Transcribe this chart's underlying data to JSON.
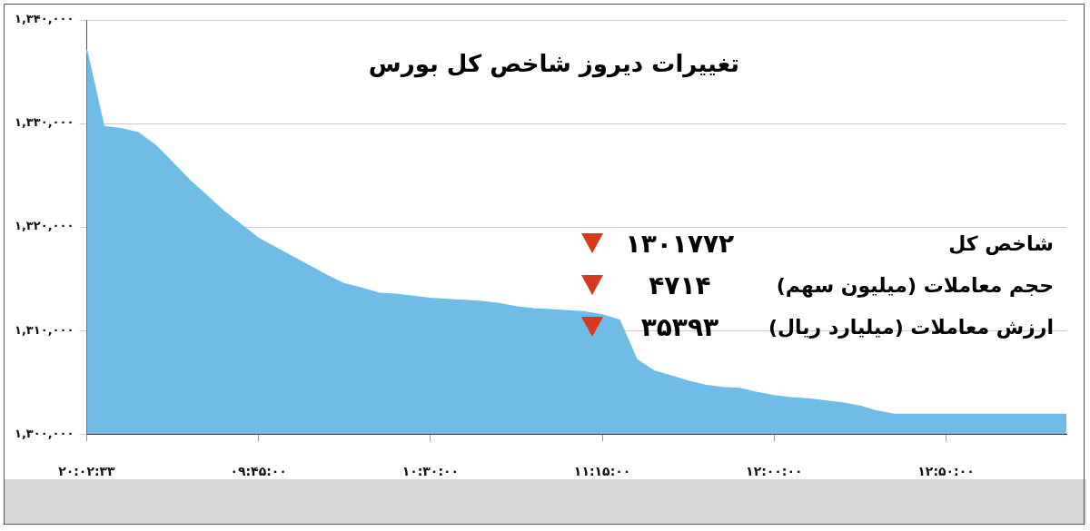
{
  "chart_data": {
    "type": "area",
    "title": "تغییرات دیروز شاخص کل بورس",
    "categories": [
      "۲۰:۰۲:۳۳",
      null,
      null,
      null,
      null,
      null,
      null,
      null,
      null,
      null,
      "۰۹:۴۵:۰۰",
      null,
      null,
      null,
      null,
      null,
      null,
      null,
      null,
      null,
      "۱۰:۳۰:۰۰",
      null,
      null,
      null,
      null,
      null,
      null,
      null,
      null,
      null,
      "۱۱:۱۵:۰۰",
      null,
      null,
      null,
      null,
      null,
      null,
      null,
      null,
      null,
      "۱۲:۰۰:۰۰",
      null,
      null,
      null,
      null,
      null,
      null,
      null,
      null,
      null,
      "۱۲:۵۰:۰۰",
      null,
      null,
      null,
      null,
      null,
      null,
      null
    ],
    "series": [
      {
        "color": "#6fbde6",
        "values": [
          1337100,
          1329700,
          1329500,
          1329100,
          1327900,
          1326200,
          1324500,
          1323000,
          1321500,
          1320200,
          1318900,
          1318000,
          1317100,
          1316200,
          1315300,
          1314500,
          1314100,
          1313600,
          1313500,
          1313300,
          1313100,
          1313000,
          1312900,
          1312800,
          1312600,
          1312300,
          1312100,
          1312000,
          1311900,
          1311800,
          1311500,
          1311000,
          1307200,
          1306100,
          1305600,
          1305100,
          1304700,
          1304500,
          1304400,
          1304000,
          1303700,
          1303500,
          1303400,
          1303200,
          1303000,
          1302700,
          1302200,
          1301900,
          1301900,
          1301900,
          1301900,
          1301900,
          1301900,
          1301900,
          1301900,
          1301900,
          1301900,
          1301900
        ]
      }
    ],
    "ylim": [
      1300000,
      1340000
    ],
    "yticks": [
      {
        "value": 1300000,
        "label": "۱,۳۰۰,۰۰۰"
      },
      {
        "value": 1310000,
        "label": "۱,۳۱۰,۰۰۰"
      },
      {
        "value": 1320000,
        "label": "۱,۳۲۰,۰۰۰"
      },
      {
        "value": 1330000,
        "label": "۱,۳۳۰,۰۰۰"
      },
      {
        "value": 1340000,
        "label": "۱,۳۴۰,۰۰۰"
      }
    ],
    "grid": "y",
    "legend": false,
    "marker": "none",
    "annotations": [
      "شاخص کل",
      "۱۳۰۱۷۷۲",
      "حجم معاملات (میلیون سهم)",
      "۴۷۱۴",
      "ارزش معاملات (میلیارد ریال)",
      "۳۵۳۹۳"
    ]
  }
}
